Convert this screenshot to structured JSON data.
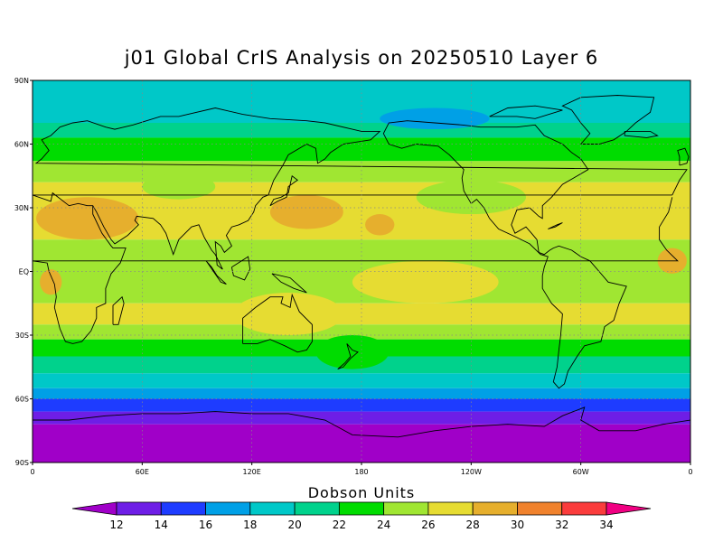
{
  "title": "j01 Global CrIS Analysis on 20250510 Layer 6",
  "axes": {
    "x_ticks": [
      "0",
      "60E",
      "120E",
      "180",
      "120W",
      "60W",
      "0"
    ],
    "x_tick_lon": [
      0,
      60,
      120,
      180,
      240,
      300,
      360
    ],
    "y_ticks": [
      "90N",
      "60N",
      "30N",
      "EQ",
      "30S",
      "60S",
      "90S"
    ],
    "y_tick_lat": [
      90,
      60,
      30,
      0,
      -30,
      -60,
      -90
    ],
    "grid": "dotted"
  },
  "colorbar": {
    "title": "Dobson Units",
    "levels": [
      12,
      14,
      16,
      18,
      20,
      22,
      24,
      26,
      28,
      30,
      32,
      34
    ],
    "colors": [
      "#a000c8",
      "#6e1ee6",
      "#1e3cff",
      "#00a0e6",
      "#00c8c8",
      "#00d28c",
      "#00dc00",
      "#a0e632",
      "#e6dc32",
      "#e6af2d",
      "#f0822d",
      "#fa3c3c",
      "#f00082"
    ]
  },
  "zonal_bands": [
    {
      "lat_from": 90,
      "lat_to": 80,
      "value": 18
    },
    {
      "lat_from": 80,
      "lat_to": 70,
      "value": 19
    },
    {
      "lat_from": 70,
      "lat_to": 63,
      "value": 21
    },
    {
      "lat_from": 63,
      "lat_to": 52,
      "value": 23
    },
    {
      "lat_from": 52,
      "lat_to": 42,
      "value": 25
    },
    {
      "lat_from": 42,
      "lat_to": 15,
      "value": 27
    },
    {
      "lat_from": 15,
      "lat_to": -15,
      "value": 25
    },
    {
      "lat_from": -15,
      "lat_to": -25,
      "value": 26
    },
    {
      "lat_from": -25,
      "lat_to": -32,
      "value": 25
    },
    {
      "lat_from": -32,
      "lat_to": -40,
      "value": 23
    },
    {
      "lat_from": -40,
      "lat_to": -48,
      "value": 21
    },
    {
      "lat_from": -48,
      "lat_to": -55,
      "value": 19
    },
    {
      "lat_from": -55,
      "lat_to": -60,
      "value": 17
    },
    {
      "lat_from": -60,
      "lat_to": -66,
      "value": 15
    },
    {
      "lat_from": -66,
      "lat_to": -72,
      "value": 13
    },
    {
      "lat_from": -72,
      "lat_to": -90,
      "value": 11
    }
  ],
  "patches": [
    {
      "lon": 30,
      "lat": 25,
      "rlon": 28,
      "rlat": 10,
      "value": 29
    },
    {
      "lon": 150,
      "lat": 28,
      "rlon": 20,
      "rlat": 8,
      "value": 29
    },
    {
      "lon": 190,
      "lat": 22,
      "rlon": 8,
      "rlat": 5,
      "value": 29
    },
    {
      "lon": 350,
      "lat": 5,
      "rlon": 8,
      "rlat": 6,
      "value": 29
    },
    {
      "lon": 10,
      "lat": -5,
      "rlon": 6,
      "rlat": 6,
      "value": 29
    },
    {
      "lon": 140,
      "lat": -20,
      "rlon": 30,
      "rlat": 10,
      "value": 27
    },
    {
      "lon": 215,
      "lat": -5,
      "rlon": 40,
      "rlat": 10,
      "value": 27
    },
    {
      "lon": 240,
      "lat": 35,
      "rlon": 30,
      "rlat": 8,
      "value": 25
    },
    {
      "lon": 80,
      "lat": 40,
      "rlon": 20,
      "rlat": 6,
      "value": 25
    },
    {
      "lon": 175,
      "lat": -38,
      "rlon": 20,
      "rlat": 8,
      "value": 23
    },
    {
      "lon": 220,
      "lat": 72,
      "rlon": 30,
      "rlat": 5,
      "value": 17
    }
  ]
}
